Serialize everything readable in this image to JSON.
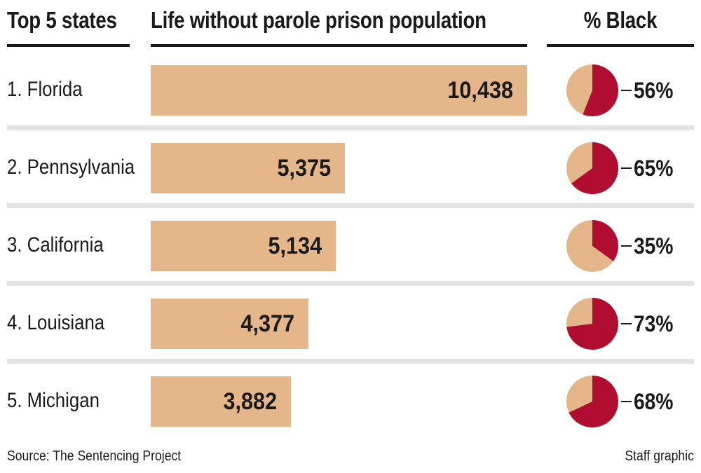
{
  "headers": {
    "col1": "Top 5 states",
    "col2": "Life without parole prison population",
    "col3": "% Black"
  },
  "chart_data": {
    "type": "bar",
    "categories": [
      "1. Florida",
      "2. Pennsylvania",
      "3. California",
      "4. Louisiana",
      "5. Michigan"
    ],
    "values": [
      10438,
      5375,
      5134,
      4377,
      3882
    ],
    "value_labels": [
      "10,438",
      "5,375",
      "5,134",
      "4,377",
      "3,882"
    ],
    "pct_black": [
      56,
      65,
      35,
      73,
      68
    ],
    "pct_labels": [
      "56%",
      "65%",
      "35%",
      "73%",
      "68%"
    ]
  },
  "colors": {
    "bar": "#e5b68a",
    "pie_black": "#b00d31",
    "pie_other": "#e5b68a",
    "separator": "#e3e3e3",
    "text": "#1a1a1a"
  },
  "footer": {
    "source": "Source: The Sentencing Project",
    "credit": "Staff graphic"
  }
}
